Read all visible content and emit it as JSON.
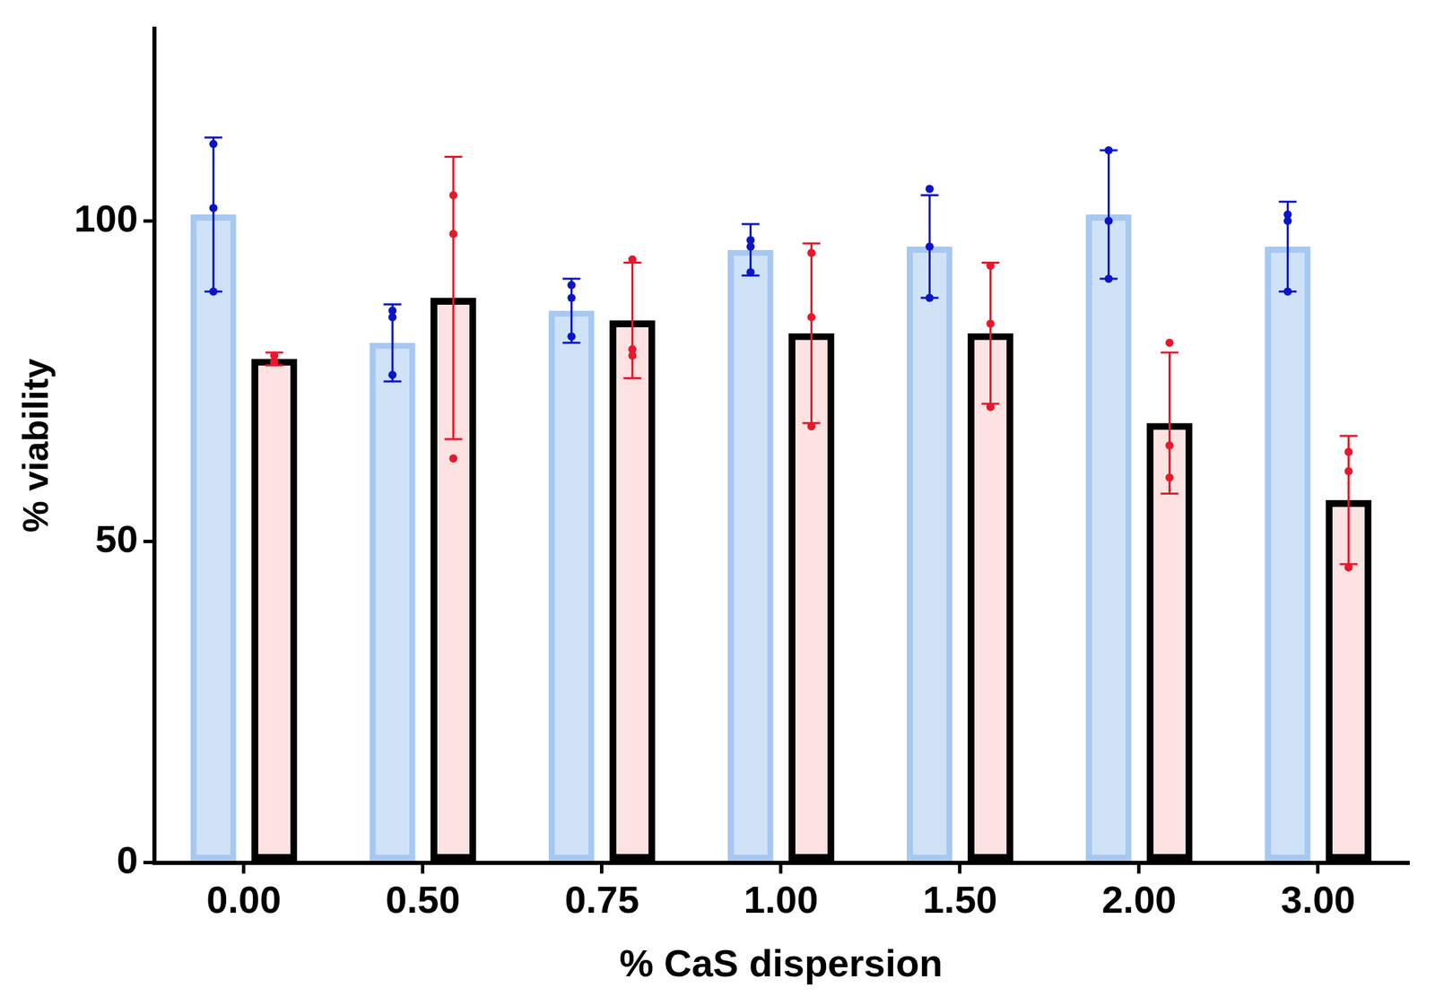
{
  "chart_data": {
    "type": "bar",
    "x_label": "% CaS dispersion",
    "y_label": "% viability",
    "categories": [
      "0.00",
      "0.50",
      "0.75",
      "1.00",
      "1.50",
      "2.00",
      "3.00"
    ],
    "series": [
      {
        "color": "#cfe2f8",
        "values": [
          101,
          81,
          86,
          95.5,
          96,
          101,
          96
        ],
        "errors": [
          12,
          6,
          5,
          4,
          8,
          10,
          7
        ],
        "points": [
          [
            112,
            102,
            89
          ],
          [
            86,
            85,
            76
          ],
          [
            88,
            82,
            90
          ],
          [
            97,
            92,
            96
          ],
          [
            96,
            105,
            88
          ],
          [
            100,
            111,
            91
          ],
          [
            100,
            101,
            89
          ]
        ]
      },
      {
        "color": "#fde2e2",
        "values": [
          78.5,
          88,
          84.5,
          82.5,
          82.5,
          68.5,
          56.5
        ],
        "errors": [
          1,
          22,
          9,
          14,
          11,
          11,
          10
        ],
        "points": [
          [
            79,
            78,
            78
          ],
          [
            104,
            98,
            63
          ],
          [
            94,
            80,
            79
          ],
          [
            95,
            85,
            68
          ],
          [
            93,
            84,
            71
          ],
          [
            81,
            65,
            60
          ],
          [
            64,
            61,
            46
          ]
        ]
      }
    ],
    "ylim": [
      0,
      130
    ],
    "yticks": [
      0,
      50,
      100
    ],
    "grid": false
  }
}
